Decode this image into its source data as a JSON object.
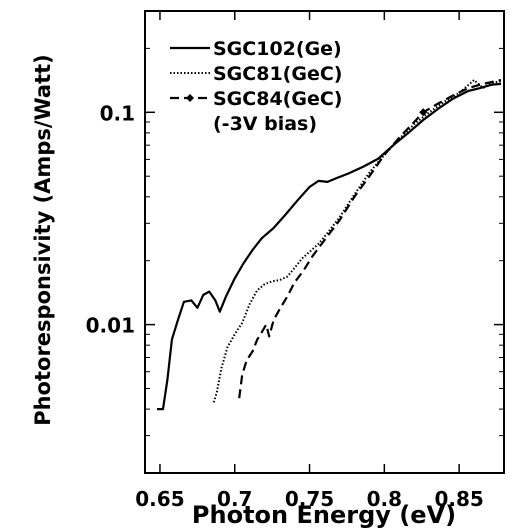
{
  "chart_data": {
    "type": "line",
    "xlabel": "Photon Energy (eV)",
    "ylabel": "Photoresponsivity (Amps/Watt)",
    "xlim": [
      0.64,
      0.88
    ],
    "ylim": [
      0.002,
      0.3
    ],
    "yscale": "log",
    "x_ticks": [
      0.65,
      0.7,
      0.75,
      0.8,
      0.85
    ],
    "x_tick_labels": [
      "0.65",
      "0.7",
      "0.75",
      "0.8",
      "0.85"
    ],
    "y_ticks": [
      0.01,
      0.1
    ],
    "y_tick_labels": [
      "0.01",
      "0.1"
    ],
    "grid": false,
    "legend": {
      "placement": "top-left",
      "note": "(-3V bias)"
    },
    "series": [
      {
        "name": "SGC102(Ge)",
        "style": "solid",
        "color": "#000000",
        "points": [
          [
            0.648,
            0.004
          ],
          [
            0.652,
            0.004
          ],
          [
            0.655,
            0.0055
          ],
          [
            0.658,
            0.0085
          ],
          [
            0.662,
            0.0105
          ],
          [
            0.666,
            0.0128
          ],
          [
            0.671,
            0.013
          ],
          [
            0.675,
            0.012
          ],
          [
            0.679,
            0.0138
          ],
          [
            0.683,
            0.0143
          ],
          [
            0.687,
            0.013
          ],
          [
            0.69,
            0.0115
          ],
          [
            0.694,
            0.0135
          ],
          [
            0.7,
            0.0165
          ],
          [
            0.706,
            0.0195
          ],
          [
            0.712,
            0.0225
          ],
          [
            0.718,
            0.0255
          ],
          [
            0.726,
            0.0285
          ],
          [
            0.734,
            0.033
          ],
          [
            0.742,
            0.0385
          ],
          [
            0.75,
            0.0445
          ],
          [
            0.756,
            0.0475
          ],
          [
            0.762,
            0.047
          ],
          [
            0.768,
            0.049
          ],
          [
            0.776,
            0.0515
          ],
          [
            0.786,
            0.0555
          ],
          [
            0.796,
            0.0605
          ],
          [
            0.806,
            0.07
          ],
          [
            0.816,
            0.08
          ],
          [
            0.826,
            0.092
          ],
          [
            0.836,
            0.104
          ],
          [
            0.846,
            0.116
          ],
          [
            0.856,
            0.126
          ],
          [
            0.864,
            0.13
          ],
          [
            0.872,
            0.135
          ],
          [
            0.878,
            0.136
          ]
        ]
      },
      {
        "name": "SGC81(GeC)",
        "style": "dotted",
        "color": "#000000",
        "points": [
          [
            0.686,
            0.0043
          ],
          [
            0.688,
            0.0048
          ],
          [
            0.691,
            0.0062
          ],
          [
            0.695,
            0.0078
          ],
          [
            0.7,
            0.009
          ],
          [
            0.705,
            0.0102
          ],
          [
            0.71,
            0.0125
          ],
          [
            0.715,
            0.0145
          ],
          [
            0.72,
            0.0155
          ],
          [
            0.725,
            0.016
          ],
          [
            0.73,
            0.0162
          ],
          [
            0.735,
            0.0168
          ],
          [
            0.74,
            0.0185
          ],
          [
            0.745,
            0.0205
          ],
          [
            0.75,
            0.022
          ],
          [
            0.756,
            0.024
          ],
          [
            0.762,
            0.027
          ],
          [
            0.77,
            0.032
          ],
          [
            0.78,
            0.041
          ],
          [
            0.79,
            0.052
          ],
          [
            0.8,
            0.063
          ],
          [
            0.81,
            0.075
          ],
          [
            0.82,
            0.088
          ],
          [
            0.83,
            0.1
          ],
          [
            0.84,
            0.112
          ],
          [
            0.85,
            0.123
          ],
          [
            0.86,
            0.142
          ],
          [
            0.866,
            0.13
          ],
          [
            0.872,
            0.138
          ],
          [
            0.878,
            0.14
          ]
        ]
      },
      {
        "name": "SGC84(GeC)",
        "style": "dash-diamond",
        "color": "#000000",
        "points": [
          [
            0.703,
            0.0045
          ],
          [
            0.705,
            0.0058
          ],
          [
            0.708,
            0.0068
          ],
          [
            0.712,
            0.0075
          ],
          [
            0.715,
            0.0085
          ],
          [
            0.718,
            0.0092
          ],
          [
            0.721,
            0.01
          ],
          [
            0.723,
            0.0088
          ],
          [
            0.726,
            0.0105
          ],
          [
            0.73,
            0.0118
          ],
          [
            0.735,
            0.0135
          ],
          [
            0.74,
            0.0158
          ],
          [
            0.746,
            0.018
          ],
          [
            0.752,
            0.021
          ],
          [
            0.76,
            0.025
          ],
          [
            0.77,
            0.031
          ],
          [
            0.78,
            0.04
          ],
          [
            0.79,
            0.05
          ],
          [
            0.8,
            0.063
          ],
          [
            0.81,
            0.076
          ],
          [
            0.82,
            0.09
          ],
          [
            0.826,
            0.1
          ],
          [
            0.836,
            0.11
          ],
          [
            0.846,
            0.12
          ],
          [
            0.856,
            0.13
          ],
          [
            0.866,
            0.136
          ],
          [
            0.878,
            0.142
          ]
        ]
      }
    ]
  }
}
